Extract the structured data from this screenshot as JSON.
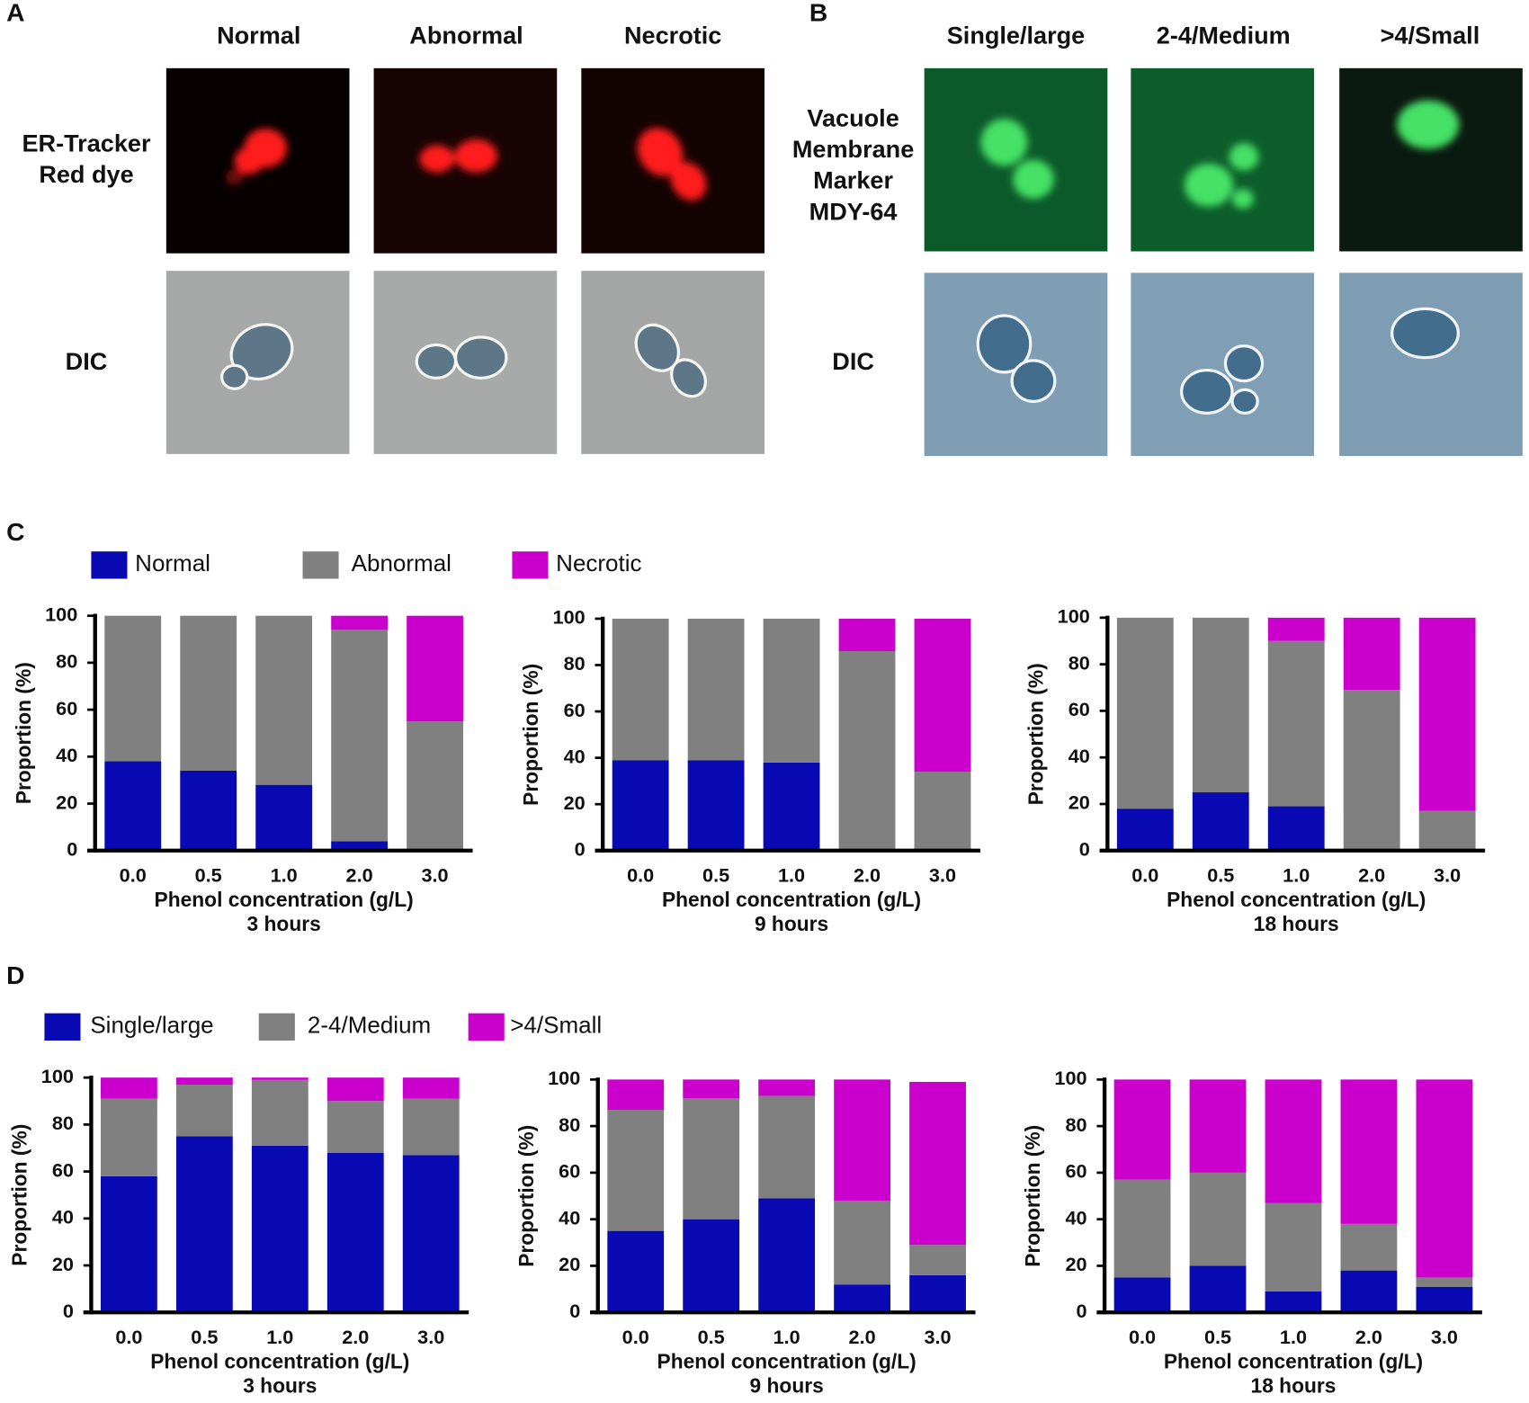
{
  "panels": {
    "A": {
      "label": "A",
      "columns": [
        "Normal",
        "Abnormal",
        "Necrotic"
      ],
      "rows": [
        [
          "ER-Tracker",
          "Red dye"
        ],
        [
          "DIC"
        ]
      ]
    },
    "B": {
      "label": "B",
      "columns": [
        "Single/large",
        "2-4/Medium",
        ">4/Small"
      ],
      "rows": [
        [
          "Vacuole",
          "Membrane",
          "Marker",
          "MDY-64"
        ],
        [
          "DIC"
        ]
      ]
    },
    "C": {
      "label": "C"
    },
    "D": {
      "label": "D"
    }
  },
  "chart_data": [
    {
      "type": "stacked_bar",
      "subtitle": "3 hours",
      "xlabel": "Phenol concentration (g/L)",
      "ylabel": "Proportion (%)",
      "categories": [
        "0.0",
        "0.5",
        "1.0",
        "2.0",
        "3.0"
      ],
      "ylim": [
        0,
        100
      ],
      "yticks": [
        0,
        20,
        40,
        60,
        80,
        100
      ],
      "series": [
        {
          "name": "Normal",
          "color": "#0a0ab4",
          "values": [
            38,
            34,
            28,
            4,
            0
          ]
        },
        {
          "name": "Abnormal",
          "color": "#808080",
          "values": [
            62,
            66,
            72,
            90,
            55
          ]
        },
        {
          "name": "Necrotic",
          "color": "#cc00cc",
          "values": [
            0,
            0,
            0,
            6,
            45
          ]
        }
      ]
    },
    {
      "type": "stacked_bar",
      "subtitle": "9 hours",
      "xlabel": "Phenol concentration (g/L)",
      "ylabel": "Proportion (%)",
      "categories": [
        "0.0",
        "0.5",
        "1.0",
        "2.0",
        "3.0"
      ],
      "ylim": [
        0,
        100
      ],
      "yticks": [
        0,
        20,
        40,
        60,
        80,
        100
      ],
      "series": [
        {
          "color": "#0a0ab4",
          "values": [
            39,
            39,
            38,
            0,
            0
          ]
        },
        {
          "color": "#808080",
          "values": [
            61,
            61,
            62,
            86,
            34
          ]
        },
        {
          "color": "#cc00cc",
          "values": [
            0,
            0,
            0,
            14,
            66
          ]
        }
      ]
    },
    {
      "type": "stacked_bar",
      "subtitle": "18 hours",
      "xlabel": "Phenol concentration (g/L)",
      "ylabel": "Proportion (%)",
      "categories": [
        "0.0",
        "0.5",
        "1.0",
        "2.0",
        "3.0"
      ],
      "ylim": [
        0,
        100
      ],
      "yticks": [
        0,
        20,
        40,
        60,
        80,
        100
      ],
      "series": [
        {
          "color": "#0a0ab4",
          "values": [
            18,
            25,
            19,
            0,
            0
          ]
        },
        {
          "color": "#808080",
          "values": [
            82,
            75,
            71,
            69,
            17
          ]
        },
        {
          "color": "#cc00cc",
          "values": [
            0,
            0,
            10,
            31,
            83
          ]
        }
      ]
    },
    {
      "type": "stacked_bar",
      "subtitle": "3 hours",
      "xlabel": "Phenol concentration (g/L)",
      "ylabel": "Proportion (%)",
      "categories": [
        "0.0",
        "0.5",
        "1.0",
        "2.0",
        "3.0"
      ],
      "ylim": [
        0,
        100
      ],
      "yticks": [
        0,
        20,
        40,
        60,
        80,
        100
      ],
      "series": [
        {
          "name": "Single/large",
          "color": "#0a0ab4",
          "values": [
            58,
            75,
            71,
            68,
            67
          ]
        },
        {
          "name": "2-4/Medium",
          "color": "#808080",
          "values": [
            33,
            22,
            28,
            22,
            24
          ]
        },
        {
          "name": ">4/Small",
          "color": "#cc00cc",
          "values": [
            9,
            3,
            1,
            10,
            9
          ]
        }
      ]
    },
    {
      "type": "stacked_bar",
      "subtitle": "9 hours",
      "xlabel": "Phenol concentration (g/L)",
      "ylabel": "Proportion (%)",
      "categories": [
        "0.0",
        "0.5",
        "1.0",
        "2.0",
        "3.0"
      ],
      "ylim": [
        0,
        100
      ],
      "yticks": [
        0,
        20,
        40,
        60,
        80,
        100
      ],
      "series": [
        {
          "color": "#0a0ab4",
          "values": [
            35,
            40,
            49,
            12,
            16
          ]
        },
        {
          "color": "#808080",
          "values": [
            52,
            52,
            44,
            36,
            13
          ]
        },
        {
          "color": "#cc00cc",
          "values": [
            13,
            8,
            7,
            52,
            70
          ]
        }
      ]
    },
    {
      "type": "stacked_bar",
      "subtitle": "18 hours",
      "xlabel": "Phenol concentration (g/L)",
      "ylabel": "Proportion (%)",
      "categories": [
        "0.0",
        "0.5",
        "1.0",
        "2.0",
        "3.0"
      ],
      "ylim": [
        0,
        100
      ],
      "yticks": [
        0,
        20,
        40,
        60,
        80,
        100
      ],
      "series": [
        {
          "color": "#0a0ab4",
          "values": [
            15,
            20,
            9,
            18,
            11
          ]
        },
        {
          "color": "#808080",
          "values": [
            42,
            40,
            38,
            20,
            4
          ]
        },
        {
          "color": "#cc00cc",
          "values": [
            43,
            40,
            53,
            62,
            85
          ]
        }
      ]
    }
  ]
}
